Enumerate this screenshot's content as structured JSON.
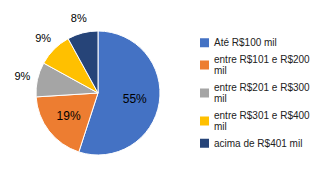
{
  "chart_data": {
    "type": "pie",
    "categories": [
      "Até R$100 mil",
      "entre R$101 e R$200\n mil",
      "entre R$201 e R$300\n mil",
      "entre R$301 e R$400\n mil",
      "acima de R$401 mil"
    ],
    "values": [
      55,
      19,
      9,
      9,
      8
    ],
    "value_labels": [
      "55%",
      "19%",
      "9%",
      "9%",
      "8%"
    ],
    "colors": [
      "#4472C4",
      "#ED7D31",
      "#A5A5A5",
      "#FFC000",
      "#264478"
    ],
    "data_labels": true,
    "legend": "right"
  }
}
